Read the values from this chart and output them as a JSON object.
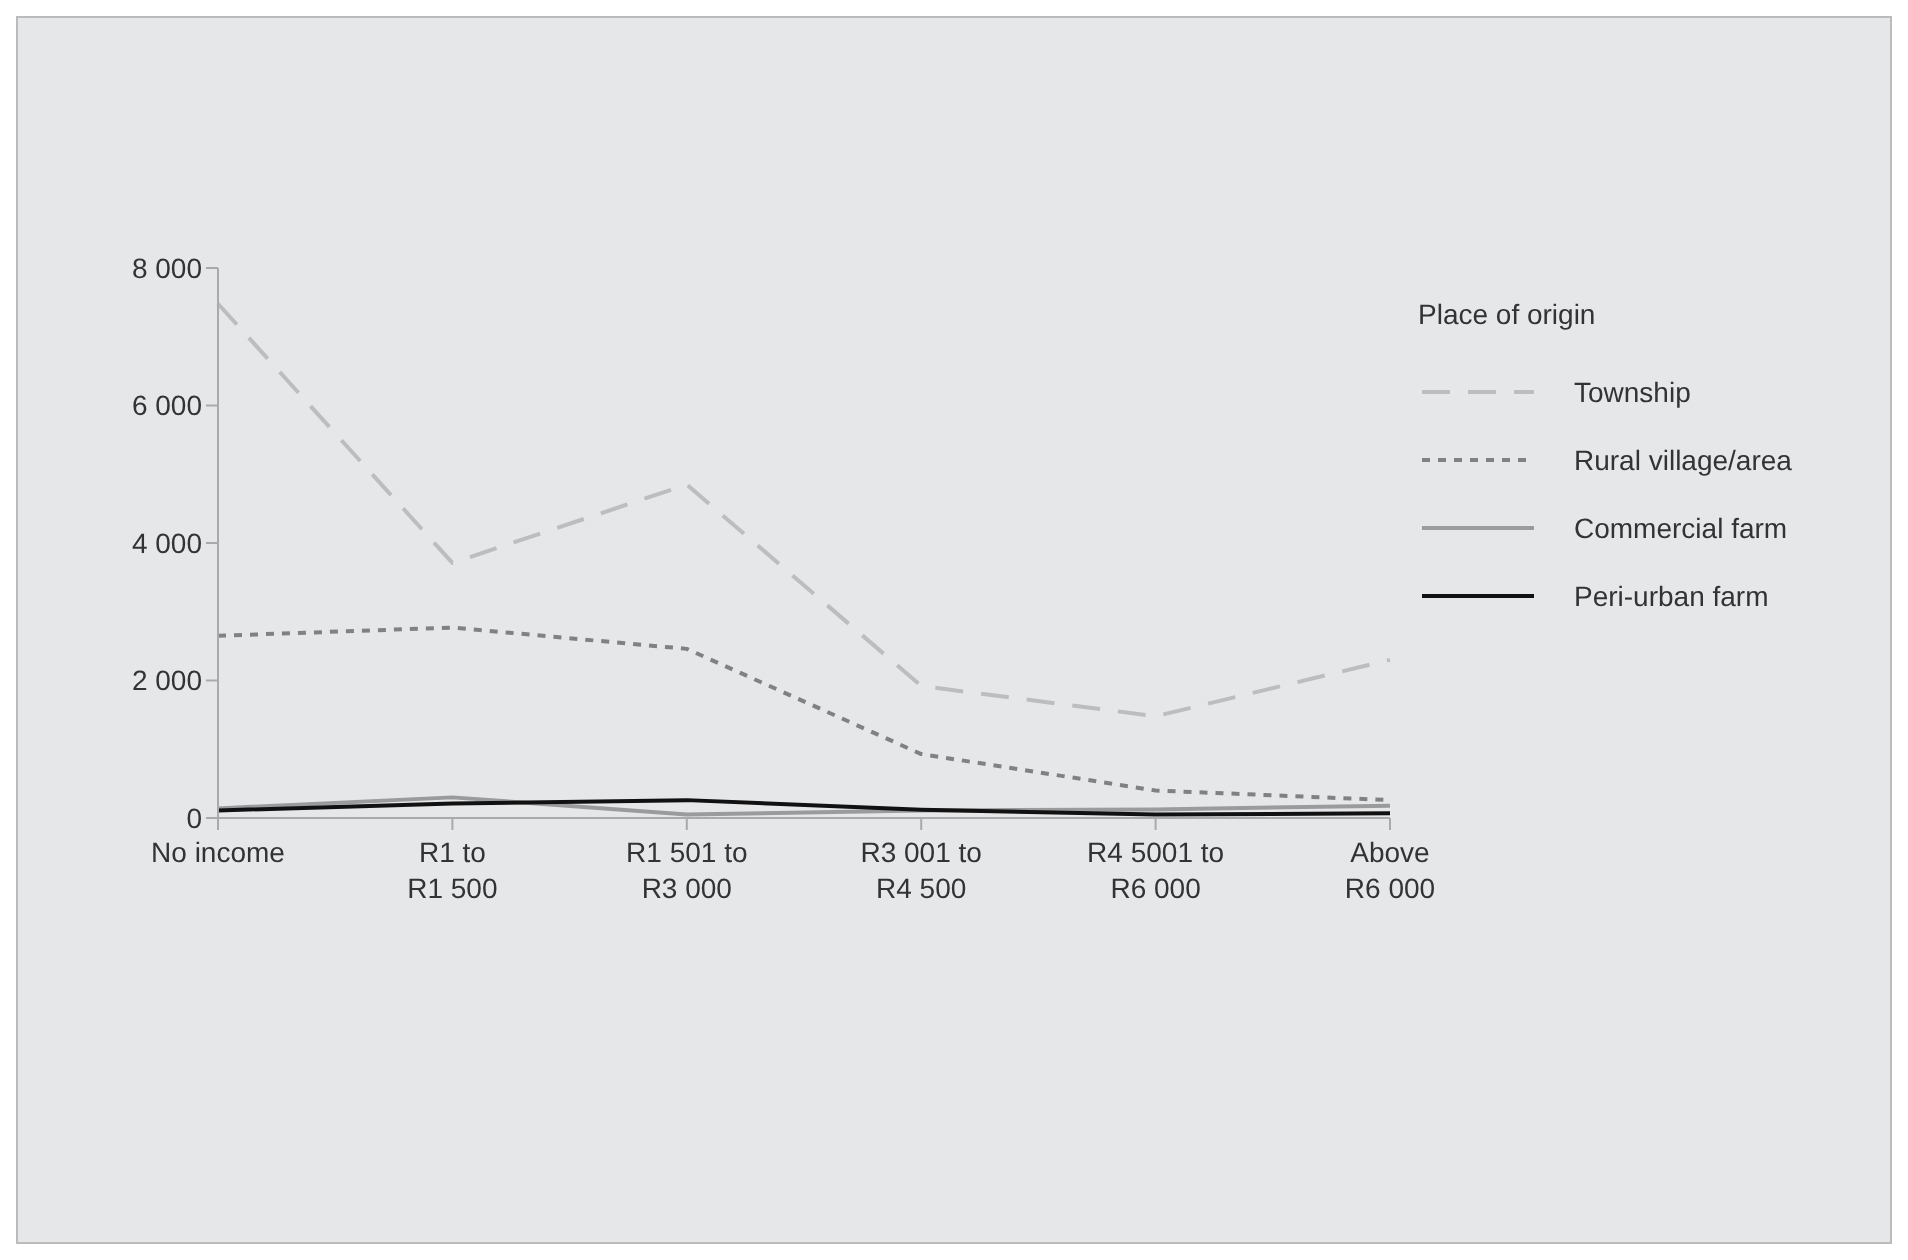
{
  "chart_data": {
    "type": "line",
    "categories": [
      "No income",
      "R1 to\nR1 500",
      "R1 501 to\nR3 000",
      "R3 001 to\nR4 500",
      "R4 5001 to\nR6 000",
      "Above\nR6 000"
    ],
    "series": [
      {
        "name": "Township",
        "color": "#bcbdbf",
        "line_style": "dashed",
        "values": [
          7480,
          3710,
          4850,
          1920,
          1480,
          2300
        ]
      },
      {
        "name": "Rural village/area",
        "color": "#808184",
        "line_style": "dotted",
        "values": [
          2650,
          2770,
          2460,
          930,
          400,
          260
        ]
      },
      {
        "name": "Commercial farm",
        "color": "#9a9b9d",
        "line_style": "solid",
        "values": [
          140,
          300,
          50,
          110,
          125,
          180
        ]
      },
      {
        "name": "Peri-urban farm",
        "color": "#111111",
        "line_style": "solid",
        "values": [
          110,
          210,
          260,
          120,
          50,
          70
        ]
      }
    ],
    "legend_title": "Place of origin",
    "legend": "right",
    "grid": false,
    "marker": "none",
    "ylim": [
      0,
      8000
    ],
    "yticks": [
      {
        "value": 0,
        "label": "0"
      },
      {
        "value": 2000,
        "label": "2 000"
      },
      {
        "value": 4000,
        "label": "4 000"
      },
      {
        "value": 6000,
        "label": "6 000"
      },
      {
        "value": 8000,
        "label": "8 000"
      }
    ]
  }
}
